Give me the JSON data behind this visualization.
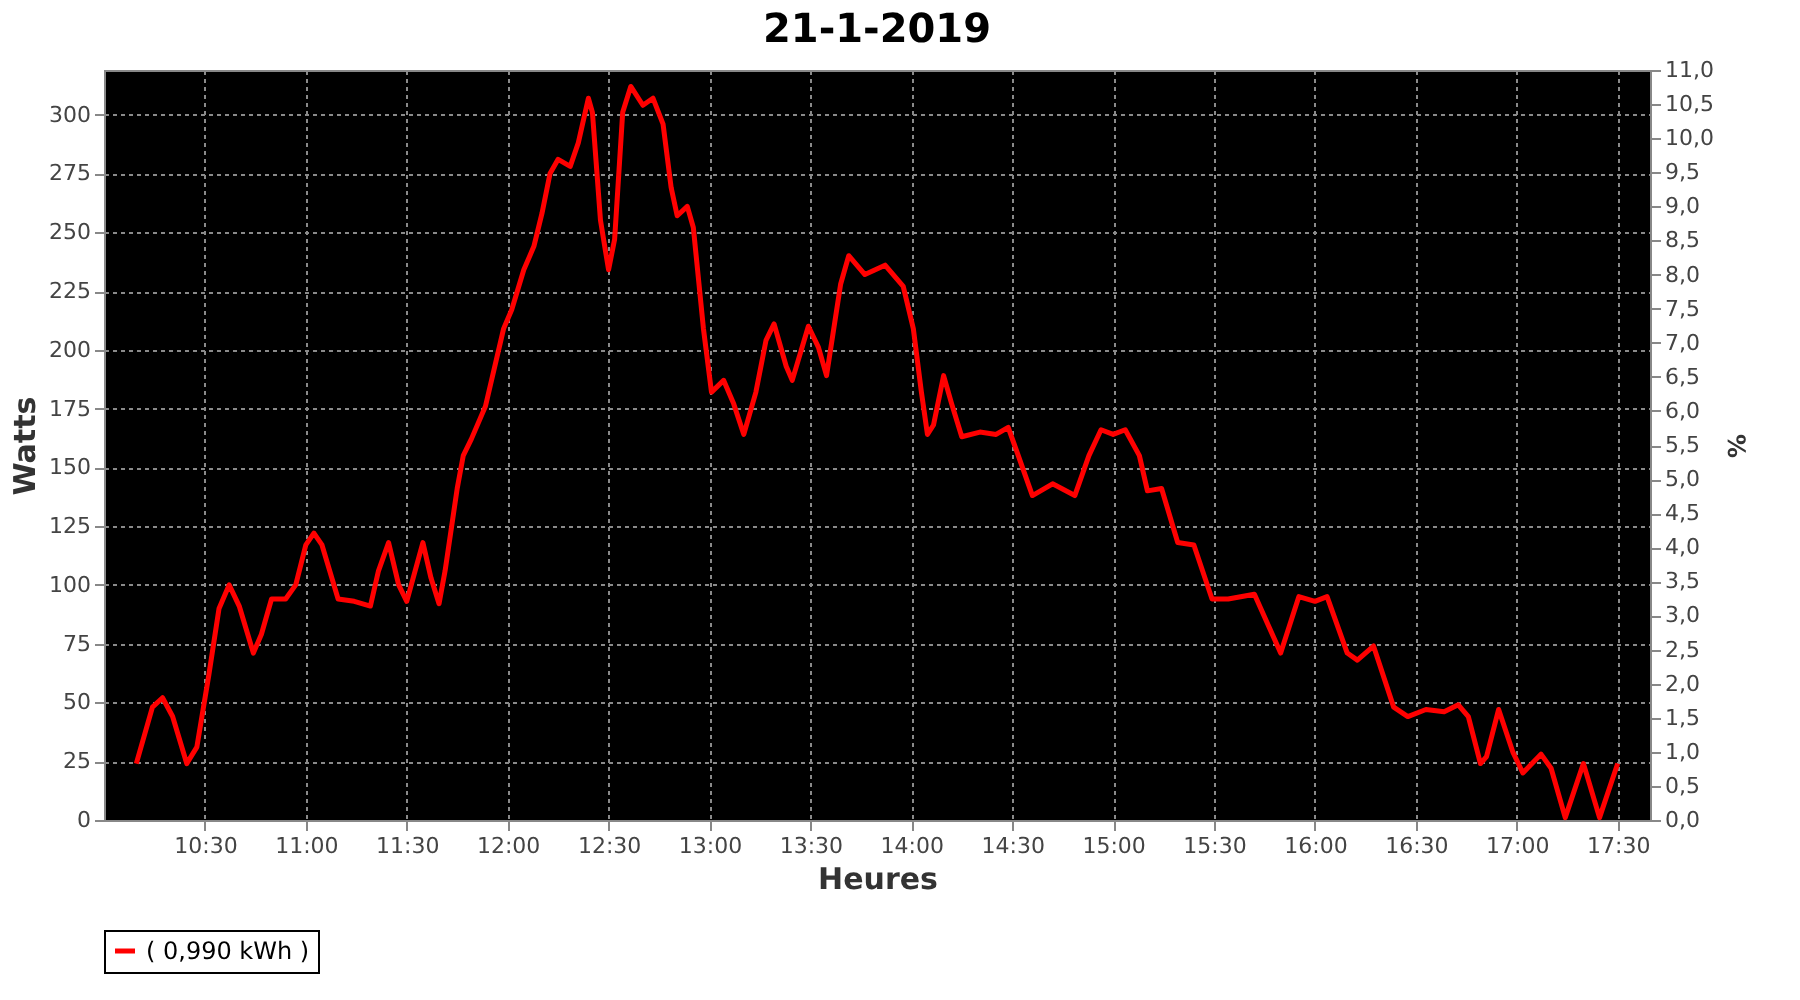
{
  "chart_data": {
    "type": "line",
    "title": "21-1-2019",
    "xlabel": "Heures",
    "ylabel": "Watts",
    "y2label": "%",
    "x": [
      10.16,
      10.24,
      10.29,
      10.34,
      10.41,
      10.46,
      10.52,
      10.57,
      10.62,
      10.67,
      10.74,
      10.78,
      10.83,
      10.9,
      10.95,
      11.0,
      11.04,
      11.08,
      11.16,
      11.24,
      11.32,
      11.36,
      11.41,
      11.46,
      11.5,
      11.58,
      11.62,
      11.66,
      11.69,
      11.75,
      11.78,
      11.82,
      11.89,
      11.98,
      12.02,
      12.08,
      12.13,
      12.17,
      12.21,
      12.25,
      12.31,
      12.35,
      12.4,
      12.42,
      12.46,
      12.5,
      12.53,
      12.57,
      12.61,
      12.67,
      12.72,
      12.77,
      12.81,
      12.84,
      12.89,
      12.92,
      12.97,
      13.01,
      13.07,
      13.12,
      13.17,
      13.23,
      13.28,
      13.32,
      13.38,
      13.41,
      13.49,
      13.54,
      13.58,
      13.65,
      13.69,
      13.77,
      13.87,
      13.96,
      14.01,
      14.05,
      14.08,
      14.11,
      14.16,
      14.2,
      14.25,
      14.34,
      14.42,
      14.48,
      14.53,
      14.6,
      14.7,
      14.81,
      14.88,
      14.94,
      15.0,
      15.06,
      15.13,
      15.17,
      15.24,
      15.32,
      15.4,
      15.49,
      15.57,
      15.7,
      15.83,
      15.92,
      16.0,
      16.06,
      16.16,
      16.21,
      16.29,
      16.39,
      16.46,
      16.55,
      16.64,
      16.71,
      16.76,
      16.82,
      16.85,
      16.91,
      16.98,
      17.03,
      17.12,
      17.17,
      17.24,
      17.33,
      17.41,
      17.5
    ],
    "series": [
      {
        "name": "( 0,990 kWh )",
        "color": "#ff0000",
        "values": [
          24,
          48,
          52,
          44,
          24,
          31,
          62,
          90,
          100,
          91,
          71,
          79,
          94,
          94,
          100,
          117,
          122,
          117,
          94,
          93,
          91,
          106,
          118,
          100,
          93,
          118,
          103,
          92,
          106,
          141,
          155,
          162,
          176,
          209,
          217,
          234,
          244,
          258,
          275,
          281,
          278,
          288,
          307,
          301,
          255,
          234,
          247,
          301,
          312,
          304,
          307,
          296,
          269,
          257,
          261,
          252,
          209,
          182,
          187,
          177,
          164,
          182,
          204,
          211,
          193,
          187,
          210,
          201,
          189,
          228,
          240,
          232,
          236,
          227,
          209,
          182,
          164,
          168,
          189,
          177,
          163,
          165,
          164,
          167,
          155,
          138,
          143,
          138,
          155,
          166,
          164,
          166,
          155,
          140,
          141,
          118,
          117,
          94,
          94,
          96,
          71,
          95,
          93,
          95,
          71,
          68,
          74,
          48,
          44,
          47,
          46,
          49,
          44,
          24,
          27,
          47,
          29,
          20,
          28,
          22,
          1,
          24,
          1,
          24
        ]
      }
    ],
    "xlim": [
      10.0,
      17.66
    ],
    "ylim": [
      0,
      319
    ],
    "y2lim": [
      0,
      11
    ],
    "xticks": [
      {
        "value": 10.5,
        "label": "10:30"
      },
      {
        "value": 11.0,
        "label": "11:00"
      },
      {
        "value": 11.5,
        "label": "11:30"
      },
      {
        "value": 12.0,
        "label": "12:00"
      },
      {
        "value": 12.5,
        "label": "12:30"
      },
      {
        "value": 13.0,
        "label": "13:00"
      },
      {
        "value": 13.5,
        "label": "13:30"
      },
      {
        "value": 14.0,
        "label": "14:00"
      },
      {
        "value": 14.5,
        "label": "14:30"
      },
      {
        "value": 15.0,
        "label": "15:00"
      },
      {
        "value": 15.5,
        "label": "15:30"
      },
      {
        "value": 16.0,
        "label": "16:00"
      },
      {
        "value": 16.5,
        "label": "16:30"
      },
      {
        "value": 17.0,
        "label": "17:00"
      },
      {
        "value": 17.5,
        "label": "17:30"
      }
    ],
    "yticks": [
      0,
      25,
      50,
      75,
      100,
      125,
      150,
      175,
      200,
      225,
      250,
      275,
      300
    ],
    "y2ticks": [
      {
        "value": 0,
        "label": "0,0"
      },
      {
        "value": 0.5,
        "label": "0,5"
      },
      {
        "value": 1,
        "label": "1,0"
      },
      {
        "value": 1.5,
        "label": "1,5"
      },
      {
        "value": 2,
        "label": "2,0"
      },
      {
        "value": 2.5,
        "label": "2,5"
      },
      {
        "value": 3,
        "label": "3,0"
      },
      {
        "value": 3.5,
        "label": "3,5"
      },
      {
        "value": 4,
        "label": "4,0"
      },
      {
        "value": 4.5,
        "label": "4,5"
      },
      {
        "value": 5,
        "label": "5,0"
      },
      {
        "value": 5.5,
        "label": "5,5"
      },
      {
        "value": 6,
        "label": "6,0"
      },
      {
        "value": 6.5,
        "label": "6,5"
      },
      {
        "value": 7,
        "label": "7,0"
      },
      {
        "value": 7.5,
        "label": "7,5"
      },
      {
        "value": 8,
        "label": "8,0"
      },
      {
        "value": 8.5,
        "label": "8,5"
      },
      {
        "value": 9,
        "label": "9,0"
      },
      {
        "value": 9.5,
        "label": "9,5"
      },
      {
        "value": 10,
        "label": "10,0"
      },
      {
        "value": 10.5,
        "label": "10,5"
      },
      {
        "value": 11,
        "label": "11,0"
      }
    ],
    "grid": true,
    "legend": "bottom",
    "line_style": "solid"
  }
}
